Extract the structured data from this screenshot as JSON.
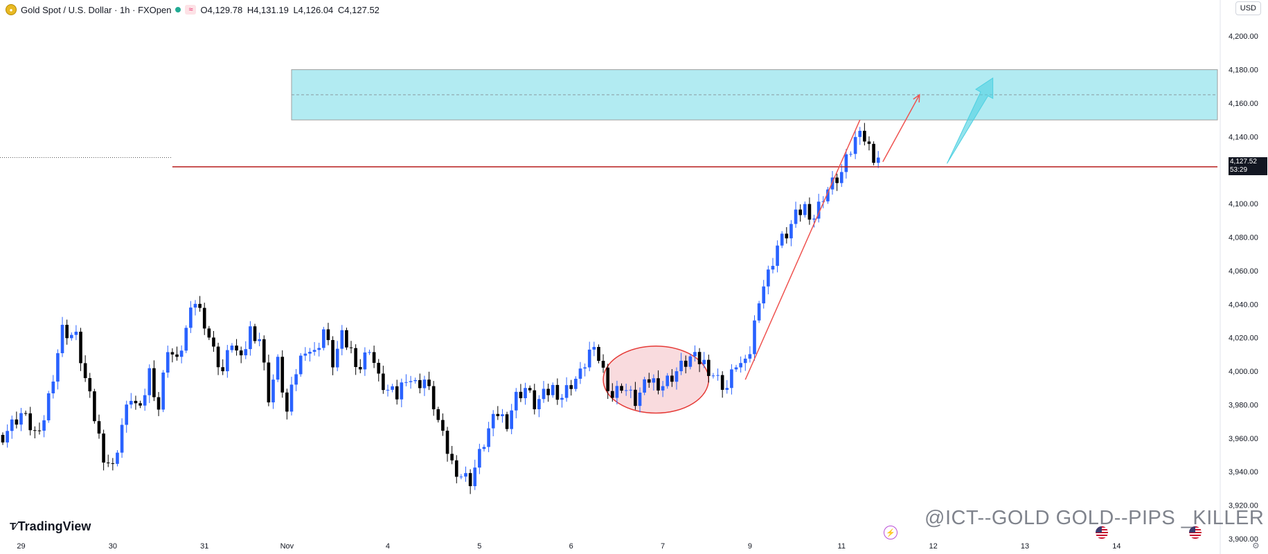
{
  "header": {
    "symbol": "Gold Spot / U.S. Dollar · 1h · FXOpen",
    "open": "O4,129.78",
    "high": "H4,131.19",
    "low": "L4,126.04",
    "close": "C4,127.52",
    "icons": [
      "gold-coin-icon",
      "market-open-dot-icon",
      "wave-icon"
    ]
  },
  "currency_button": "USD",
  "price_tag": {
    "price": "4,127.52",
    "countdown": "53:29"
  },
  "branding": {
    "logo_text": "TradingView",
    "watermark": "@ICT--GOLD GOLD--PIPS _KILLER"
  },
  "colors": {
    "bullish": "#2962ff",
    "bearish": "#000000",
    "zone_fill": "#b2ebf2",
    "zone_border": "#9e9e9e",
    "support_line": "#b71c1c",
    "trend_arrow": "#ef5350",
    "projection_arrow": "#4dd0e1",
    "ellipse_fill": "#f8d7da",
    "ellipse_stroke": "#e53935"
  },
  "chart_data": {
    "type": "candlestick",
    "title": "Gold Spot / U.S. Dollar · 1h · FXOpen",
    "timeframe": "1h",
    "y_unit": "USD",
    "ylim": [
      3900,
      4210
    ],
    "y_ticks": [
      3900,
      3920,
      3940,
      3960,
      3980,
      4000,
      4020,
      4040,
      4060,
      4080,
      4100,
      4120,
      4140,
      4160,
      4180,
      4200
    ],
    "y_tick_labels": [
      "3,900.00",
      "3,920.00",
      "3,940.00",
      "3,960.00",
      "3,980.00",
      "4,000.00",
      "4,020.00",
      "4,040.00",
      "4,060.00",
      "4,080.00",
      "4,100.00",
      "4,120.00",
      "4,140.00",
      "4,160.00",
      "4,180.00",
      "4,200.00"
    ],
    "x_range": [
      0,
      265
    ],
    "x_ticks": [
      {
        "bar": 4,
        "label": "29"
      },
      {
        "bar": 24,
        "label": "30"
      },
      {
        "bar": 44,
        "label": "31"
      },
      {
        "bar": 62,
        "label": "Nov"
      },
      {
        "bar": 84,
        "label": "4"
      },
      {
        "bar": 104,
        "label": "5"
      },
      {
        "bar": 124,
        "label": "6"
      },
      {
        "bar": 144,
        "label": "7"
      },
      {
        "bar": 163,
        "label": "9"
      },
      {
        "bar": 183,
        "label": "11"
      },
      {
        "bar": 203,
        "label": "12"
      },
      {
        "bar": 223,
        "label": "13"
      },
      {
        "bar": 243,
        "label": "14"
      }
    ],
    "last_price": 4127.52,
    "grid": false,
    "anchors": [
      [
        0,
        3962
      ],
      [
        4,
        3975
      ],
      [
        8,
        3960
      ],
      [
        10,
        3985
      ],
      [
        13,
        4025
      ],
      [
        16,
        4020
      ],
      [
        18,
        3995
      ],
      [
        20,
        3972
      ],
      [
        22,
        3950
      ],
      [
        24,
        3942
      ],
      [
        26,
        3968
      ],
      [
        28,
        3985
      ],
      [
        30,
        3975
      ],
      [
        32,
        4000
      ],
      [
        34,
        3978
      ],
      [
        36,
        4015
      ],
      [
        38,
        4005
      ],
      [
        40,
        4025
      ],
      [
        42,
        4042
      ],
      [
        44,
        4030
      ],
      [
        46,
        4012
      ],
      [
        48,
        4000
      ],
      [
        50,
        4018
      ],
      [
        52,
        4005
      ],
      [
        54,
        4025
      ],
      [
        56,
        4020
      ],
      [
        58,
        3985
      ],
      [
        60,
        4005
      ],
      [
        62,
        3975
      ],
      [
        64,
        4000
      ],
      [
        66,
        4015
      ],
      [
        68,
        4010
      ],
      [
        70,
        4025
      ],
      [
        72,
        4005
      ],
      [
        74,
        4020
      ],
      [
        76,
        4012
      ],
      [
        78,
        4002
      ],
      [
        80,
        4015
      ],
      [
        82,
        3995
      ],
      [
        84,
        3988
      ],
      [
        86,
        3985
      ],
      [
        88,
        3998
      ],
      [
        90,
        3992
      ],
      [
        92,
        3995
      ],
      [
        94,
        3980
      ],
      [
        96,
        3960
      ],
      [
        98,
        3945
      ],
      [
        100,
        3938
      ],
      [
        102,
        3935
      ],
      [
        104,
        3950
      ],
      [
        106,
        3965
      ],
      [
        108,
        3975
      ],
      [
        110,
        3970
      ],
      [
        112,
        3985
      ],
      [
        114,
        3990
      ],
      [
        116,
        3980
      ],
      [
        118,
        3985
      ],
      [
        120,
        3990
      ],
      [
        122,
        3985
      ],
      [
        124,
        3993
      ],
      [
        126,
        3998
      ],
      [
        128,
        4012
      ],
      [
        130,
        4008
      ],
      [
        133,
        3985
      ],
      [
        135,
        3992
      ],
      [
        138,
        3982
      ],
      [
        141,
        3995
      ],
      [
        144,
        3992
      ],
      [
        147,
        4000
      ],
      [
        150,
        4008
      ],
      [
        153,
        4005
      ],
      [
        156,
        3995
      ],
      [
        158,
        3990
      ],
      [
        160,
        4005
      ],
      [
        162,
        4003
      ],
      [
        163,
        4012
      ],
      [
        165,
        4045
      ],
      [
        167,
        4058
      ],
      [
        169,
        4075
      ],
      [
        171,
        4082
      ],
      [
        173,
        4092
      ],
      [
        175,
        4098
      ],
      [
        177,
        4092
      ],
      [
        179,
        4105
      ],
      [
        181,
        4112
      ],
      [
        183,
        4118
      ],
      [
        184,
        4125
      ],
      [
        186,
        4138
      ],
      [
        187,
        4148
      ],
      [
        188,
        4138
      ],
      [
        190,
        4128
      ],
      [
        191,
        4127.52
      ]
    ],
    "annotations": {
      "target_zone": {
        "x_start": 63,
        "x_end": 265,
        "price_top": 4180,
        "price_bottom": 4150,
        "midline": 4165
      },
      "support_line": {
        "x_start": 37,
        "x_end": 265,
        "price": 4122
      },
      "trend_line": {
        "from": [
          162,
          3995
        ],
        "to": [
          187,
          4150
        ]
      },
      "projection_arrow_1": {
        "from": [
          192,
          4125
        ],
        "to": [
          200,
          4165
        ]
      },
      "projection_arrow_2": {
        "from": [
          206,
          4124
        ],
        "to": [
          216,
          4175
        ]
      },
      "ellipse": {
        "center": [
          142.5,
          3995
        ],
        "rx_bars": 11.5,
        "ry_price": 20
      },
      "dotted_line_price": 4127.52
    }
  }
}
